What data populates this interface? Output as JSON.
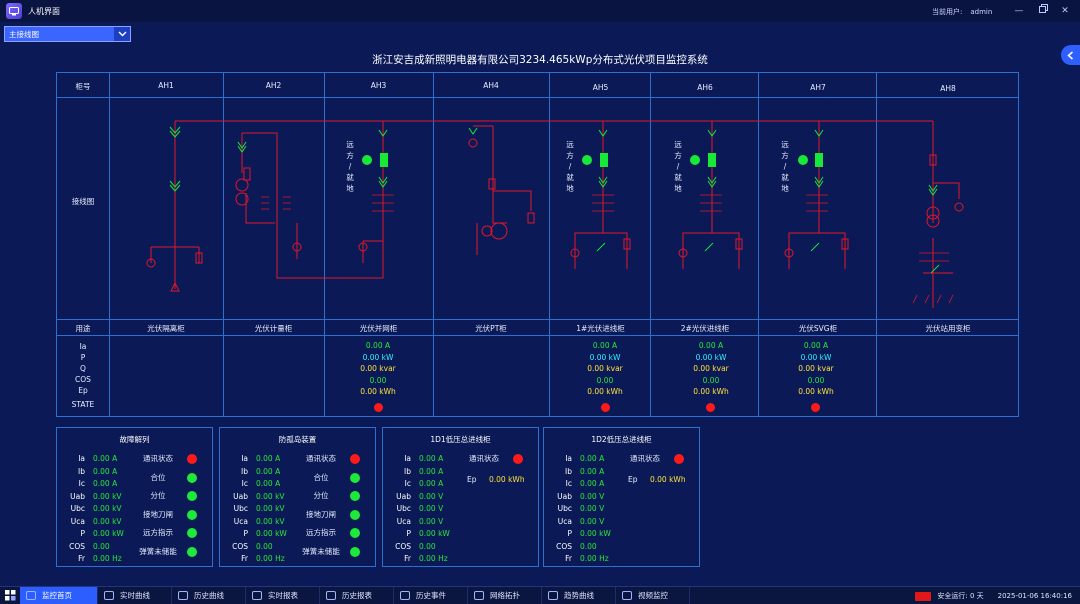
{
  "app": {
    "title": "人机界面",
    "user_label": "当前用户:",
    "user_name": "admin"
  },
  "view_select": {
    "value": "主接线图"
  },
  "page_title": "浙江安吉成新照明电器有限公司3234.465kWp分布式光伏项目监控系统",
  "table": {
    "row_labels": {
      "cabinet": "柜号",
      "diagram": "接线图",
      "usage": "用途"
    },
    "measure_labels": [
      "Ia",
      "P",
      "Q",
      "COS",
      "Ep",
      "STATE"
    ],
    "columns": [
      {
        "id": "AH1",
        "usage": "光伏隔离柜"
      },
      {
        "id": "AH2",
        "usage": "光伏计量柜"
      },
      {
        "id": "AH3",
        "usage": "光伏并网柜"
      },
      {
        "id": "AH4",
        "usage": "光伏PT柜"
      },
      {
        "id": "AH5",
        "usage": "1#光伏进线柜"
      },
      {
        "id": "AH6",
        "usage": "2#光伏进线柜"
      },
      {
        "id": "AH7",
        "usage": "光伏SVG柜"
      },
      {
        "id": "AH8",
        "usage": "光伏站用变柜"
      }
    ],
    "local_remote_chars": [
      "远",
      "方",
      "/",
      "就",
      "地"
    ],
    "measurements": [
      {
        "col": "AH3",
        "ia": "0.00 A",
        "p": "0.00 kW",
        "q": "0.00 kvar",
        "cos": "0.00",
        "ep": "0.00 kWh"
      },
      {
        "col": "AH5",
        "ia": "0.00 A",
        "p": "0.00 kW",
        "q": "0.00 kvar",
        "cos": "0.00",
        "ep": "0.00 kWh"
      },
      {
        "col": "AH6",
        "ia": "0.00 A",
        "p": "0.00 kW",
        "q": "0.00 kvar",
        "cos": "0.00",
        "ep": "0.00 kWh"
      },
      {
        "col": "AH7",
        "ia": "0.00 A",
        "p": "0.00 kW",
        "q": "0.00 kvar",
        "cos": "0.00",
        "ep": "0.00 kWh"
      }
    ]
  },
  "panels": [
    {
      "title": "故障解列",
      "rows": [
        [
          "Ia",
          "0.00 A"
        ],
        [
          "Ib",
          "0.00 A"
        ],
        [
          "Ic",
          "0.00 A"
        ],
        [
          "Uab",
          "0.00 kV"
        ],
        [
          "Ubc",
          "0.00 kV"
        ],
        [
          "Uca",
          "0.00 kV"
        ],
        [
          "P",
          "0.00 kW"
        ],
        [
          "COS",
          "0.00"
        ],
        [
          "Fr",
          "0.00 Hz"
        ]
      ],
      "signals": [
        [
          "通讯状态",
          "red"
        ],
        [
          "合位",
          "green"
        ],
        [
          "分位",
          "green"
        ],
        [
          "接地刀闸",
          "green"
        ],
        [
          "远方指示",
          "green"
        ],
        [
          "弹簧未储能",
          "green"
        ]
      ]
    },
    {
      "title": "防孤岛装置",
      "rows": [
        [
          "Ia",
          "0.00 A"
        ],
        [
          "Ib",
          "0.00 A"
        ],
        [
          "Ic",
          "0.00 A"
        ],
        [
          "Uab",
          "0.00 kV"
        ],
        [
          "Ubc",
          "0.00 kV"
        ],
        [
          "Uca",
          "0.00 kV"
        ],
        [
          "P",
          "0.00 kW"
        ],
        [
          "COS",
          "0.00"
        ],
        [
          "Fr",
          "0.00 Hz"
        ]
      ],
      "signals": [
        [
          "通讯状态",
          "red"
        ],
        [
          "合位",
          "green"
        ],
        [
          "分位",
          "green"
        ],
        [
          "接地刀闸",
          "green"
        ],
        [
          "远方指示",
          "green"
        ],
        [
          "弹簧未储能",
          "green"
        ]
      ]
    },
    {
      "title": "1D1低压总进线柜",
      "rows": [
        [
          "Ia",
          "0.00 A"
        ],
        [
          "Ib",
          "0.00 A"
        ],
        [
          "Ic",
          "0.00 A"
        ],
        [
          "Uab",
          "0.00 V"
        ],
        [
          "Ubc",
          "0.00 V"
        ],
        [
          "Uca",
          "0.00 V"
        ],
        [
          "P",
          "0.00 kW"
        ],
        [
          "COS",
          "0.00"
        ],
        [
          "Fr",
          "0.00 Hz"
        ]
      ],
      "signals": [
        [
          "通讯状态",
          "red"
        ]
      ],
      "energy": [
        "Ep",
        "0.00 kWh"
      ]
    },
    {
      "title": "1D2低压总进线柜",
      "rows": [
        [
          "Ia",
          "0.00 A"
        ],
        [
          "Ib",
          "0.00 A"
        ],
        [
          "Ic",
          "0.00 A"
        ],
        [
          "Uab",
          "0.00 V"
        ],
        [
          "Ubc",
          "0.00 V"
        ],
        [
          "Uca",
          "0.00 V"
        ],
        [
          "P",
          "0.00 kW"
        ],
        [
          "COS",
          "0.00"
        ],
        [
          "Fr",
          "0.00 Hz"
        ]
      ],
      "signals": [
        [
          "通讯状态",
          "red"
        ]
      ],
      "energy": [
        "Ep",
        "0.00 kWh"
      ]
    }
  ],
  "taskbar": {
    "items": [
      "监控首页",
      "实时曲线",
      "历史曲线",
      "实时报表",
      "历史报表",
      "历史事件",
      "网络拓扑",
      "趋势曲线",
      "视频监控"
    ],
    "active_index": 0,
    "runtime": "安全运行: 0 天",
    "datetime": "2025-01-06 16:40:16"
  },
  "colors": {
    "background": "#0b1a56",
    "grid": "#2f6fd0",
    "bus": "#e0162a",
    "breaker": "#18e838",
    "accent": "#2c5dff"
  }
}
